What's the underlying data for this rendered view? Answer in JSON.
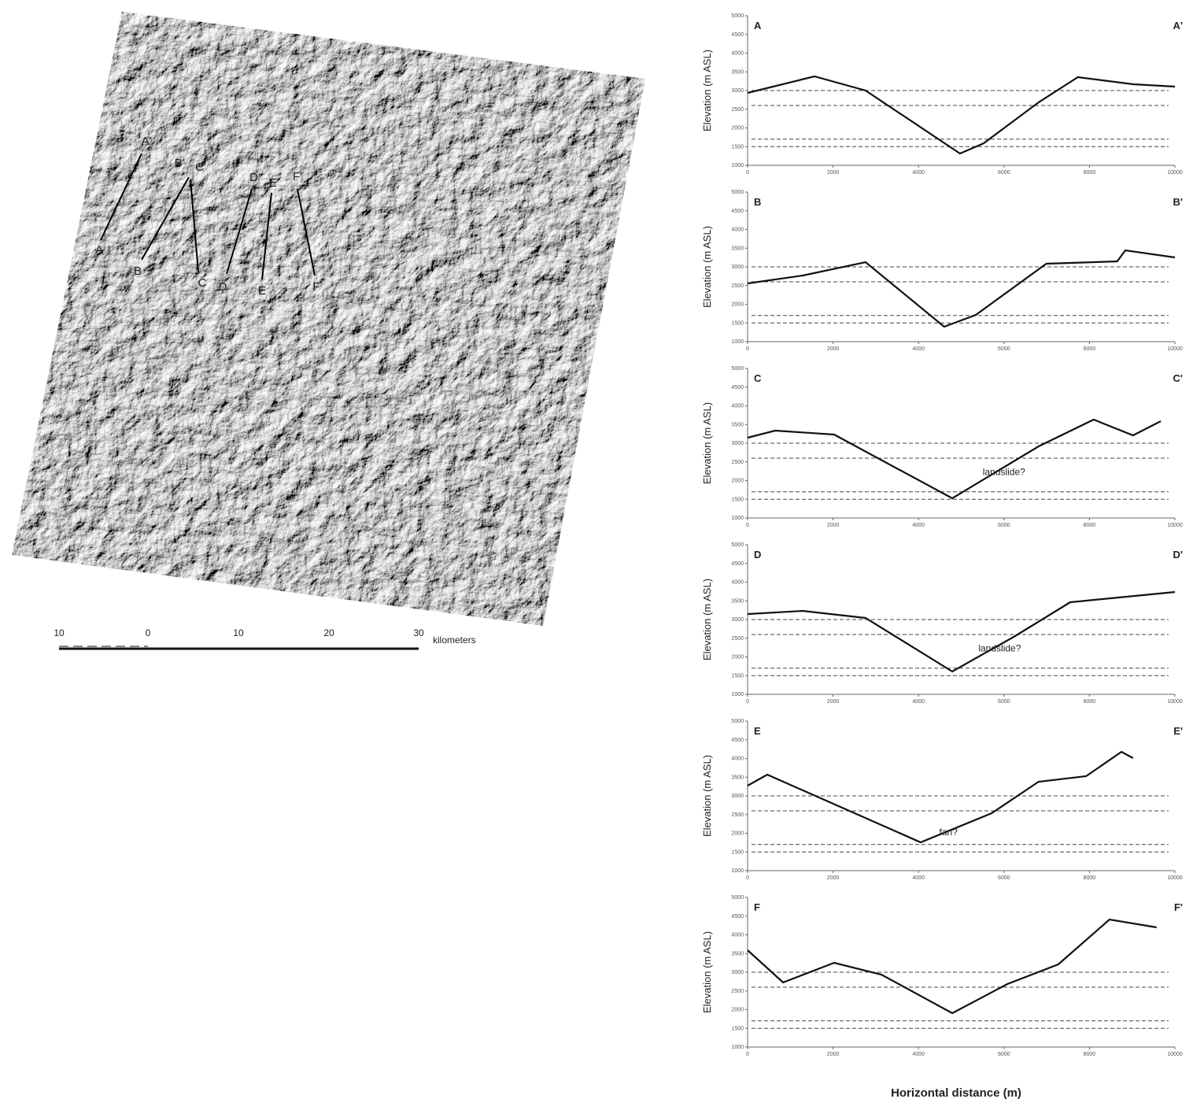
{
  "map": {
    "sections": [
      {
        "start": "A",
        "end": "A'"
      },
      {
        "start": "B",
        "end": "B'"
      },
      {
        "start": "C",
        "end": "C'"
      },
      {
        "start": "D",
        "end": "D'"
      },
      {
        "start": "E",
        "end": "E'"
      },
      {
        "start": "F",
        "end": "F'"
      }
    ],
    "scale_bar": {
      "labels": [
        "10",
        "0",
        "10",
        "20",
        "30"
      ],
      "unit": "kilometers"
    }
  },
  "figure": {
    "xlabel": "Horizontal distance (m)"
  },
  "chart_data": [
    {
      "type": "line",
      "start_label": "A",
      "end_label": "A'",
      "ylabel": "Elevation (m ASL)",
      "color": "#111",
      "xlim": [
        0,
        10000
      ],
      "xticks": [
        0,
        2000,
        4000,
        6000,
        8000,
        10000
      ],
      "ylim": [
        1000,
        5000
      ],
      "yticks": [
        1000,
        1500,
        2000,
        2500,
        3000,
        3500,
        4000,
        4500,
        5000
      ],
      "x": [
        0,
        1565,
        2760,
        4970,
        5525,
        6810,
        7730,
        9020,
        10000
      ],
      "values": [
        2937,
        3379,
        3000,
        1316,
        1590,
        2684,
        3358,
        3168,
        3105
      ],
      "reference_lines": [
        3000,
        2600,
        1700,
        1500
      ]
    },
    {
      "type": "line",
      "start_label": "B",
      "end_label": "B'",
      "ylabel": "Elevation (m ASL)",
      "color": "#111",
      "xlim": [
        0,
        10000
      ],
      "xticks": [
        0,
        2000,
        4000,
        6000,
        8000,
        10000
      ],
      "ylim": [
        1000,
        5000
      ],
      "yticks": [
        1000,
        1500,
        2000,
        2500,
        3000,
        3500,
        4000,
        4500,
        5000
      ],
      "x": [
        0,
        1290,
        2760,
        4600,
        5340,
        6990,
        8650,
        8840,
        10000
      ],
      "values": [
        2558,
        2768,
        3126,
        1400,
        1716,
        3084,
        3147,
        3442,
        3253
      ],
      "reference_lines": [
        3000,
        2600,
        1700,
        1500
      ]
    },
    {
      "type": "line",
      "start_label": "C",
      "end_label": "C'",
      "ylabel": "Elevation (m ASL)",
      "color": "#111",
      "xlim": [
        0,
        10000
      ],
      "xticks": [
        0,
        2000,
        4000,
        6000,
        8000,
        10000
      ],
      "ylim": [
        1000,
        5000
      ],
      "yticks": [
        1000,
        1500,
        2000,
        2500,
        3000,
        3500,
        4000,
        4500,
        5000
      ],
      "x": [
        0,
        645,
        2025,
        4790,
        6810,
        8100,
        9020,
        9670
      ],
      "values": [
        3147,
        3337,
        3231,
        1526,
        2916,
        3631,
        3210,
        3589
      ],
      "reference_lines": [
        3000,
        2600,
        1700,
        1500
      ],
      "annotation": {
        "text": "landslide?",
        "x": 6000,
        "y": 2150
      }
    },
    {
      "type": "line",
      "start_label": "D",
      "end_label": "D'",
      "ylabel": "Elevation (m ASL)",
      "color": "#111",
      "xlim": [
        0,
        10000
      ],
      "xticks": [
        0,
        2000,
        4000,
        6000,
        8000,
        10000
      ],
      "ylim": [
        1000,
        5000
      ],
      "yticks": [
        1000,
        1500,
        2000,
        2500,
        3000,
        3500,
        4000,
        4500,
        5000
      ],
      "x": [
        0,
        1290,
        2760,
        4790,
        6260,
        7550,
        10000
      ],
      "values": [
        3147,
        3231,
        3042,
        1610,
        2558,
        3463,
        3737
      ],
      "reference_lines": [
        3000,
        2600,
        1700,
        1500
      ],
      "annotation": {
        "text": "landslide?",
        "x": 5900,
        "y": 2150
      }
    },
    {
      "type": "line",
      "start_label": "E",
      "end_label": "E'",
      "ylabel": "Elevation (m ASL)",
      "color": "#111",
      "xlim": [
        0,
        10000
      ],
      "xticks": [
        0,
        2000,
        4000,
        6000,
        8000,
        10000
      ],
      "ylim": [
        1000,
        5000
      ],
      "yticks": [
        1000,
        1500,
        2000,
        2500,
        3000,
        3500,
        4000,
        4500,
        5000
      ],
      "x": [
        0,
        460,
        4050,
        5710,
        6810,
        7920,
        8750,
        9020
      ],
      "values": [
        3273,
        3568,
        1758,
        2537,
        3379,
        3526,
        4179,
        4011
      ],
      "reference_lines": [
        3000,
        2600,
        1700,
        1500
      ],
      "annotation": {
        "text": "fan?",
        "x": 4700,
        "y": 1950
      }
    },
    {
      "type": "line",
      "start_label": "F",
      "end_label": "F'",
      "ylabel": "Elevation (m ASL)",
      "color": "#111",
      "xlim": [
        0,
        10000
      ],
      "xticks": [
        0,
        2000,
        4000,
        6000,
        8000,
        10000
      ],
      "ylim": [
        1000,
        5000
      ],
      "yticks": [
        1000,
        1500,
        2000,
        2500,
        3000,
        3500,
        4000,
        4500,
        5000
      ],
      "x": [
        0,
        830,
        2025,
        3130,
        4790,
        6080,
        7270,
        8470,
        9570
      ],
      "values": [
        3589,
        2726,
        3253,
        2937,
        1905,
        2684,
        3210,
        4410,
        4200
      ],
      "reference_lines": [
        3000,
        2600,
        1700,
        1500
      ]
    }
  ]
}
